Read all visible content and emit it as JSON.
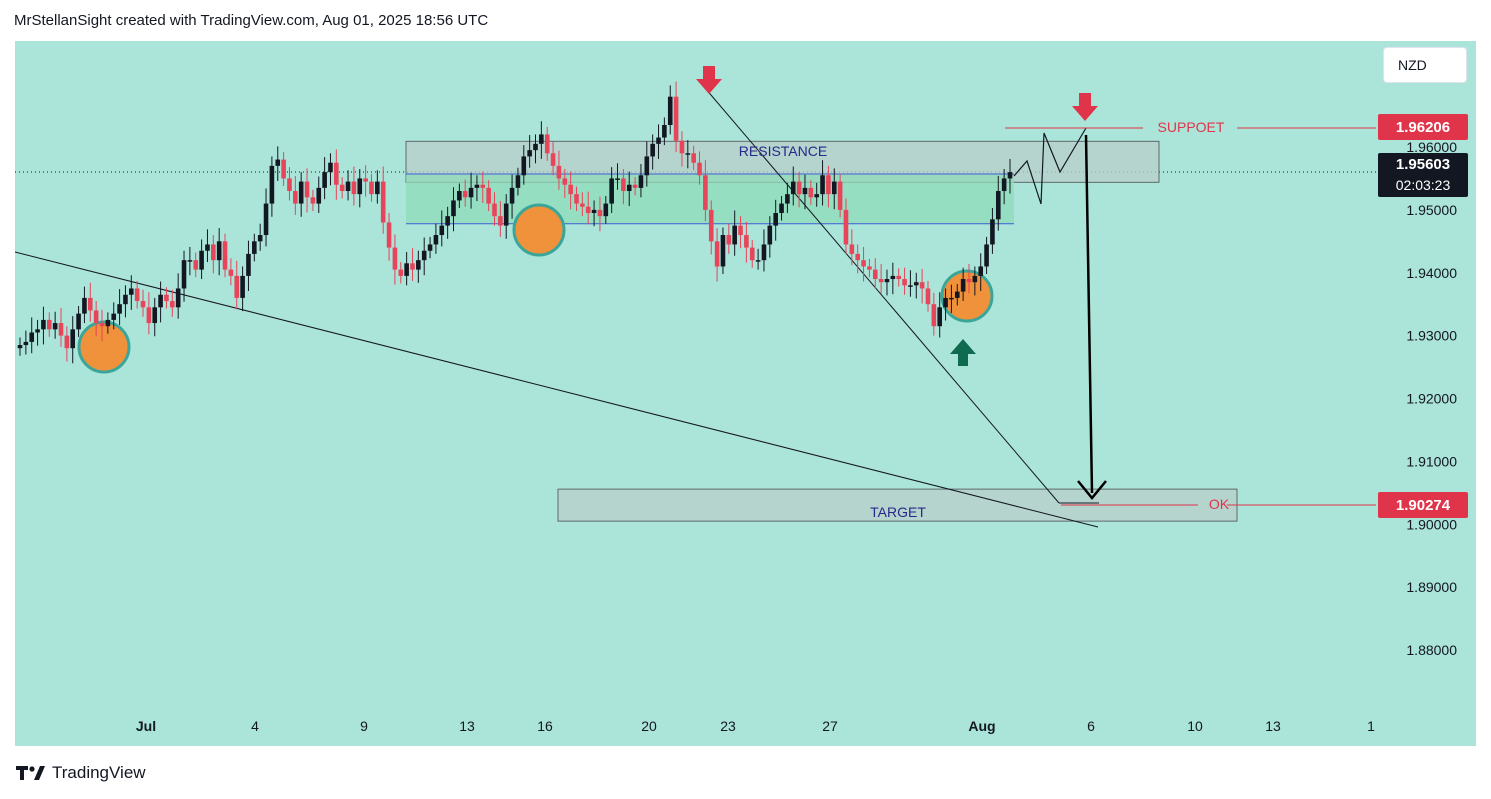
{
  "header": {
    "text": "MrStellanSight created with TradingView.com, Aug 01, 2025 18:56 UTC"
  },
  "currency": "NZD",
  "footer": {
    "brand": "TradingView"
  },
  "colors": {
    "background": "#abe4d9",
    "up": "#131722",
    "down": "#e8445a",
    "price_tag_red": "#e0344b",
    "price_tag_dark": "#131722"
  },
  "icons": [
    "down-arrow-icon",
    "up-arrow-icon",
    "tradingview-logo-icon"
  ],
  "chart_data": {
    "type": "candlestick",
    "ylim": [
      1.87,
      1.97
    ],
    "y_ticks": [
      "1.96000",
      "1.95000",
      "1.94000",
      "1.93000",
      "1.92000",
      "1.91000",
      "1.90000",
      "1.89000",
      "1.88000"
    ],
    "x_ticks": [
      "Jul",
      "4",
      "9",
      "13",
      "16",
      "20",
      "23",
      "27",
      "Aug",
      "6",
      "10",
      "13",
      "1"
    ],
    "price_labels": [
      {
        "value": "1.96206",
        "style": "red"
      },
      {
        "value": "1.95603",
        "sub": "02:03:23",
        "style": "dark"
      },
      {
        "value": "1.90274",
        "style": "red"
      }
    ],
    "annotations": {
      "resistance": "RESISTANCE",
      "target": "TARGET",
      "support": "SUPPOET",
      "ok": "OK"
    },
    "path_close": [
      1.9285,
      1.929,
      1.9305,
      1.931,
      1.9325,
      1.931,
      1.932,
      1.93,
      1.928,
      1.931,
      1.9335,
      1.936,
      1.934,
      1.932,
      1.9315,
      1.9325,
      1.9335,
      1.935,
      1.9365,
      1.9375,
      1.9355,
      1.9345,
      1.932,
      1.9345,
      1.9365,
      1.9355,
      1.9345,
      1.9375,
      1.942,
      1.942,
      1.9405,
      1.9435,
      1.9445,
      1.942,
      1.945,
      1.9405,
      1.9395,
      1.936,
      1.9395,
      1.943,
      1.945,
      1.946,
      1.951,
      1.957,
      1.958,
      1.955,
      1.953,
      1.951,
      1.9545,
      1.952,
      1.951,
      1.9535,
      1.956,
      1.9575,
      1.954,
      1.953,
      1.9545,
      1.9525,
      1.955,
      1.9545,
      1.9525,
      1.9545,
      1.948,
      1.944,
      1.9405,
      1.9395,
      1.9415,
      1.9405,
      1.942,
      1.9435,
      1.9445,
      1.946,
      1.9475,
      1.949,
      1.9515,
      1.953,
      1.952,
      1.9535,
      1.954,
      1.9535,
      1.951,
      1.949,
      1.9475,
      1.951,
      1.9535,
      1.9555,
      1.9585,
      1.9595,
      1.9605,
      1.962,
      1.959,
      1.957,
      1.955,
      1.954,
      1.9525,
      1.951,
      1.9505,
      1.9495,
      1.95,
      1.949,
      1.951,
      1.955,
      1.955,
      1.953,
      1.954,
      1.9535,
      1.9555,
      1.9585,
      1.9605,
      1.9615,
      1.9635,
      1.968,
      1.961,
      1.959,
      1.959,
      1.9575,
      1.9555,
      1.95,
      1.945,
      1.941,
      1.946,
      1.9445,
      1.9475,
      1.946,
      1.944,
      1.942,
      1.942,
      1.9445,
      1.9475,
      1.9495,
      1.951,
      1.9525,
      1.9545,
      1.9525,
      1.9535,
      1.952,
      1.9525,
      1.9555,
      1.9525,
      1.9545,
      1.95,
      1.9445,
      1.943,
      1.942,
      1.941,
      1.9405,
      1.939,
      1.9385,
      1.939,
      1.9395,
      1.939,
      1.938,
      1.938,
      1.9385,
      1.9375,
      1.935,
      1.9315,
      1.9345,
      1.936,
      1.936,
      1.937,
      1.939,
      1.9385,
      1.9395,
      1.941,
      1.9445,
      1.9485,
      1.953,
      1.955,
      1.956
    ]
  }
}
